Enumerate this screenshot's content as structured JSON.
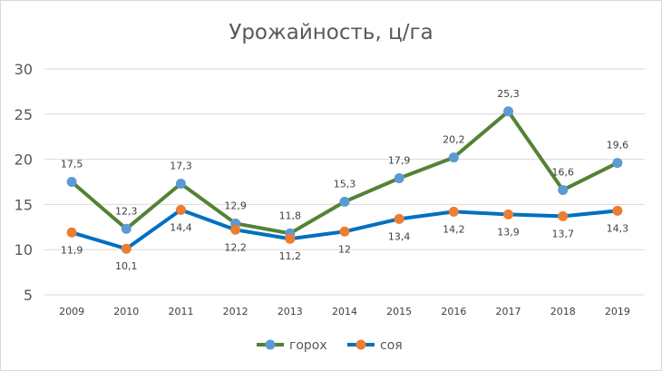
{
  "chart_data": {
    "type": "line",
    "title": "Урожайность, ц/га",
    "xlabel": "",
    "ylabel": "",
    "categories": [
      "2009",
      "2010",
      "2011",
      "2012",
      "2013",
      "2014",
      "2015",
      "2016",
      "2017",
      "2018",
      "2019"
    ],
    "ylim": [
      5,
      30
    ],
    "yticks": [
      5,
      10,
      15,
      20,
      25,
      30
    ],
    "grid": "horizontal",
    "legend": "bottom",
    "series": [
      {
        "name": "горох",
        "color": "#548235",
        "marker_color": "#5b9bd5",
        "values": [
          17.5,
          12.3,
          17.3,
          12.9,
          11.8,
          15.3,
          17.9,
          20.2,
          25.3,
          16.6,
          19.6
        ],
        "labels": [
          "17,5",
          "12,3",
          "17,3",
          "12,9",
          "11,8",
          "15,3",
          "17,9",
          "20,2",
          "25,3",
          "16,6",
          "19,6"
        ],
        "label_position": "above"
      },
      {
        "name": "соя",
        "color": "#0070c0",
        "marker_color": "#ed7d31",
        "values": [
          11.9,
          10.1,
          14.4,
          12.2,
          11.2,
          12,
          13.4,
          14.2,
          13.9,
          13.7,
          14.3
        ],
        "labels": [
          "11,9",
          "10,1",
          "14,4",
          "12,2",
          "11,2",
          "12",
          "13,4",
          "14,2",
          "13,9",
          "13,7",
          "14,3"
        ],
        "label_position": "below"
      }
    ]
  }
}
